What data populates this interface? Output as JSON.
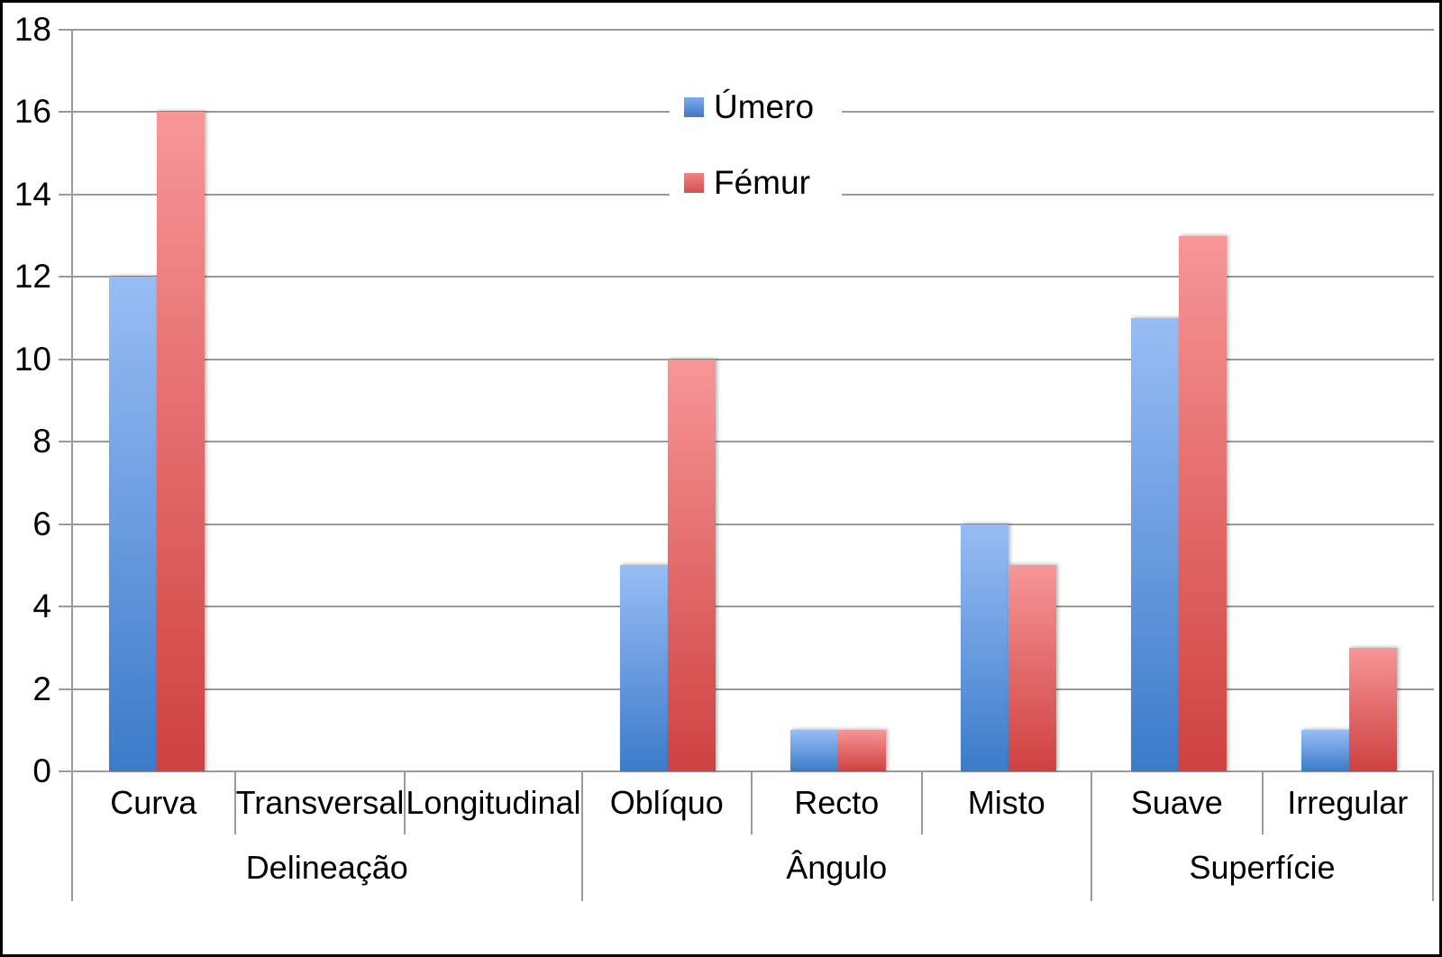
{
  "chart_data": {
    "type": "bar",
    "title": "",
    "xlabel": "",
    "ylabel": "",
    "ylim": [
      0,
      18
    ],
    "yticks": [
      18,
      16,
      14,
      12,
      10,
      8,
      6,
      4,
      2,
      0
    ],
    "grid": true,
    "legend_position": "top-center-inside",
    "categories": [
      "Curva",
      "Transversal",
      "Longitudinal",
      "Oblíquo",
      "Recto",
      "Misto",
      "Suave",
      "Irregular"
    ],
    "groups": [
      {
        "label": "Delineação",
        "span": 3
      },
      {
        "label": "Ângulo",
        "span": 3
      },
      {
        "label": "Superfície",
        "span": 2
      }
    ],
    "series": [
      {
        "name": "Úmero",
        "color": "#4a82cc",
        "values": [
          12,
          0,
          0,
          5,
          1,
          6,
          11,
          1
        ]
      },
      {
        "name": "Fémur",
        "color": "#d95253",
        "values": [
          16,
          0,
          0,
          10,
          1,
          5,
          13,
          3
        ]
      }
    ]
  },
  "colors": {
    "umero_gradient_top": "#98bdf4",
    "umero_gradient_bottom": "#3b7bc8",
    "femur_gradient_top": "#f79697",
    "femur_gradient_bottom": "#cf4142",
    "gridline": "#9a9a9a",
    "text": "#000000",
    "background": "#ffffff",
    "frame_border": "#000000"
  }
}
